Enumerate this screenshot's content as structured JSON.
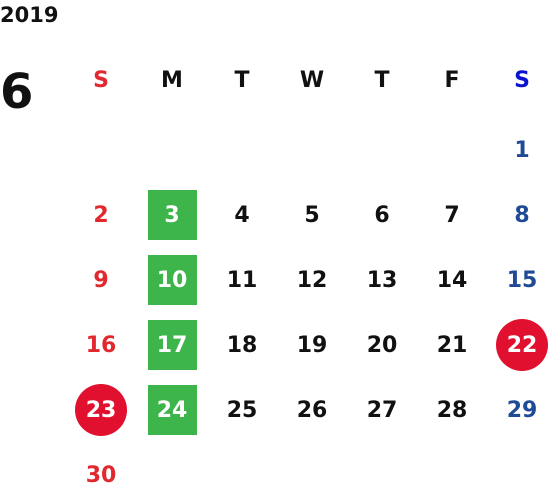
{
  "header": {
    "year": "2019",
    "month": "6"
  },
  "weekdays": [
    "S",
    "M",
    "T",
    "W",
    "T",
    "F",
    "S"
  ],
  "colors": {
    "weekday": "#111111",
    "sunday": "#e0282e",
    "saturday_header": "#0a14d0",
    "saturday": "#1f4a96",
    "green_box": "#3db54a",
    "red_circle": "#e2102f",
    "marked_text": "#ffffff"
  },
  "weeks": [
    [
      null,
      null,
      null,
      null,
      null,
      null,
      {
        "day": "1"
      }
    ],
    [
      {
        "day": "2"
      },
      {
        "day": "3",
        "mark": "green_box"
      },
      {
        "day": "4"
      },
      {
        "day": "5"
      },
      {
        "day": "6"
      },
      {
        "day": "7"
      },
      {
        "day": "8"
      }
    ],
    [
      {
        "day": "9"
      },
      {
        "day": "10",
        "mark": "green_box"
      },
      {
        "day": "11"
      },
      {
        "day": "12"
      },
      {
        "day": "13"
      },
      {
        "day": "14"
      },
      {
        "day": "15"
      }
    ],
    [
      {
        "day": "16"
      },
      {
        "day": "17",
        "mark": "green_box"
      },
      {
        "day": "18"
      },
      {
        "day": "19"
      },
      {
        "day": "20"
      },
      {
        "day": "21"
      },
      {
        "day": "22",
        "mark": "red_circle"
      }
    ],
    [
      {
        "day": "23",
        "mark": "red_circle"
      },
      {
        "day": "24",
        "mark": "green_box"
      },
      {
        "day": "25"
      },
      {
        "day": "26"
      },
      {
        "day": "27"
      },
      {
        "day": "28"
      },
      {
        "day": "29"
      }
    ],
    [
      {
        "day": "30"
      },
      null,
      null,
      null,
      null,
      null,
      null
    ]
  ]
}
